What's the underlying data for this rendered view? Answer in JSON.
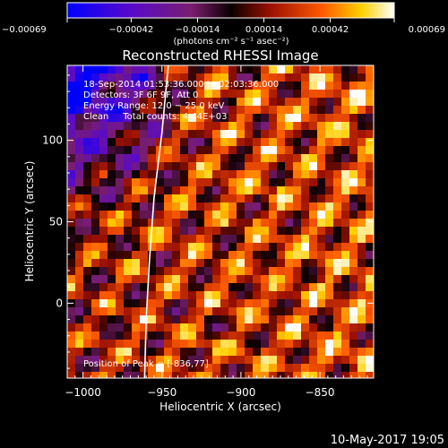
{
  "chart_data": {
    "type": "heatmap",
    "title": "Reconstructed RHESSI Image",
    "xlabel": "Heliocentric X (arcsec)",
    "ylabel": "Heliocentric Y (arcsec)",
    "xlim": [
      -1010,
      -816
    ],
    "ylim": [
      -46,
      146
    ],
    "x_ticks": [
      -1000,
      -950,
      -900,
      -850
    ],
    "y_ticks": [
      0,
      50,
      100
    ],
    "x_tick_labels": [
      "−1000",
      "−950",
      "−900",
      "−850"
    ],
    "y_tick_labels": [
      "0",
      "50",
      "100"
    ],
    "colorbar": {
      "range": [
        -0.00069,
        0.00069
      ],
      "ticks": [
        -0.00069,
        -0.00042,
        -0.00014,
        0.00014,
        0.00042,
        0.00069
      ],
      "tick_labels": [
        "−0.00069",
        "−0.00042",
        "−0.00014",
        "0.00014",
        "0.00042",
        "0.00069"
      ],
      "units": "(photons cm⁻² s⁻¹ asec⁻²)"
    },
    "annotations": [
      "18-Sep-2014 01:53:36.000 to 02:03:36.000",
      "Detectors: 3F 6F 9F, Att 0",
      "Energy Range: 12.0 − 25.0 keV",
      "Clean     Total counts: 4.44E+03"
    ],
    "peak_label": "Position of Peak = [-836,77]",
    "peak": [
      -836,
      77
    ],
    "limb_curve": [
      [
        -946,
        146
      ],
      [
        -950,
        105
      ],
      [
        -955,
        65
      ],
      [
        -958,
        25
      ],
      [
        -960,
        -10
      ],
      [
        -961,
        -46
      ]
    ]
  },
  "footer": {
    "date": "10-May-2017 19:05"
  }
}
